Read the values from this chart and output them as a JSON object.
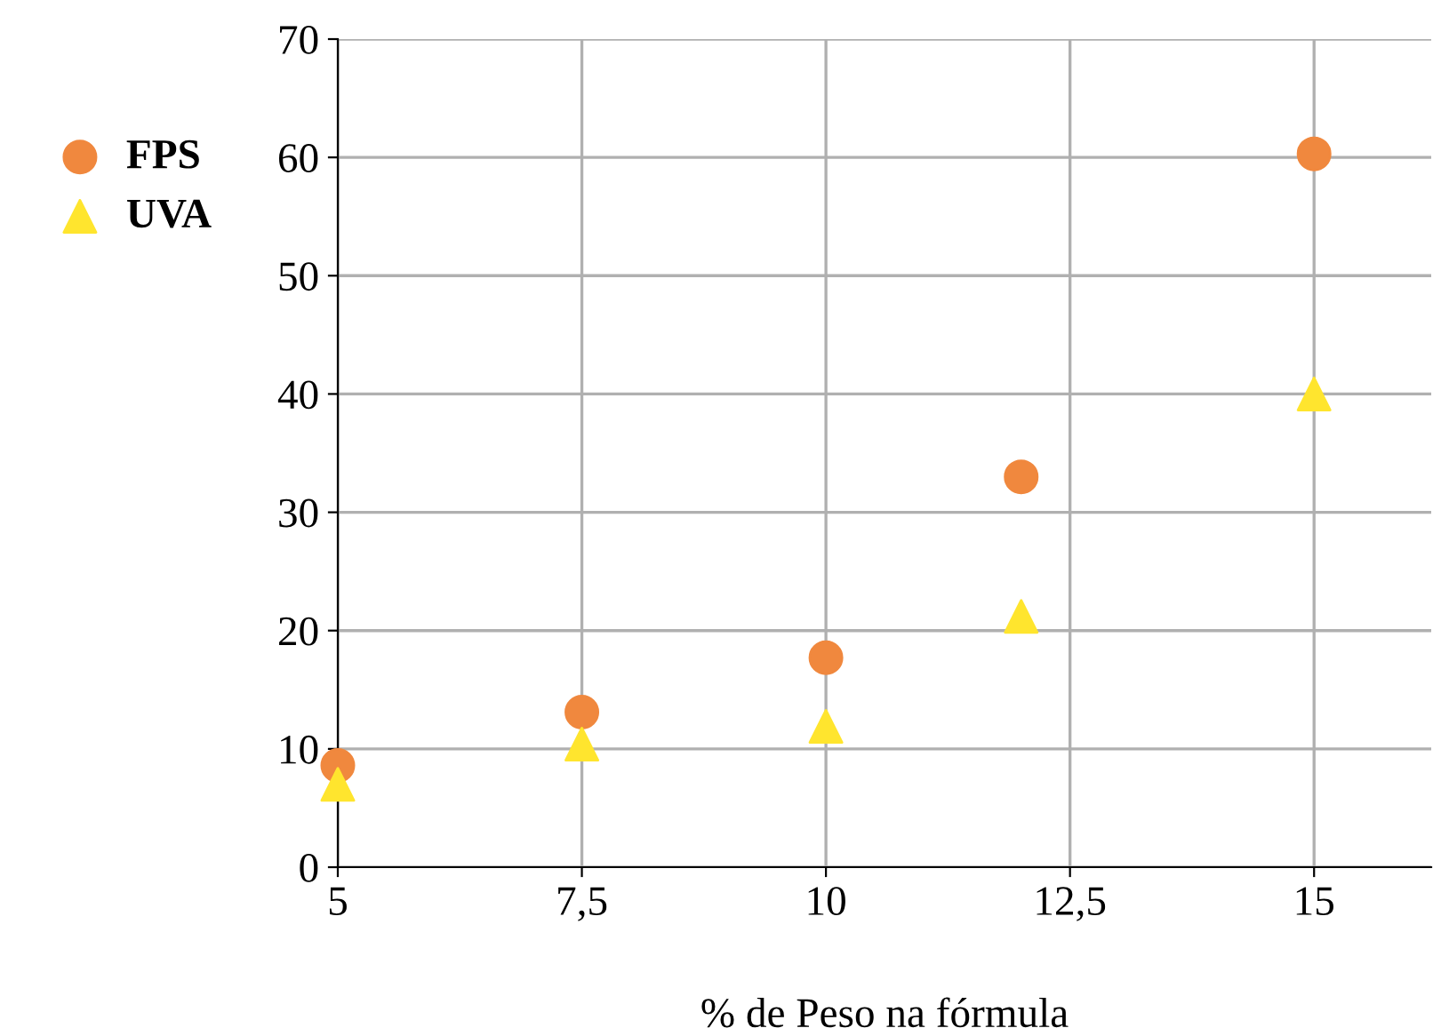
{
  "chart_data": {
    "type": "scatter",
    "xlabel": "% de Peso na fórmula",
    "x": [
      5,
      7.5,
      10,
      12,
      15
    ],
    "series": [
      {
        "name": "FPS",
        "color": "#f0883e",
        "marker": "circle",
        "values": [
          8.6,
          13.1,
          17.7,
          33.0,
          60.3
        ]
      },
      {
        "name": "UVA",
        "color": "#ffe52e",
        "marker": "triangle",
        "values": [
          7.0,
          10.4,
          11.9,
          21.2,
          40.0
        ]
      }
    ],
    "xlim": [
      5,
      16.2
    ],
    "xticks": [
      {
        "value": 5,
        "label": "5"
      },
      {
        "value": 7.5,
        "label": "7,5"
      },
      {
        "value": 10,
        "label": "10"
      },
      {
        "value": 12.5,
        "label": "12,5"
      },
      {
        "value": 15,
        "label": "15"
      }
    ],
    "ylim": [
      0,
      70
    ],
    "yticks": [
      0,
      10,
      20,
      30,
      40,
      50,
      60,
      70
    ],
    "grid": true,
    "legend": "left"
  }
}
